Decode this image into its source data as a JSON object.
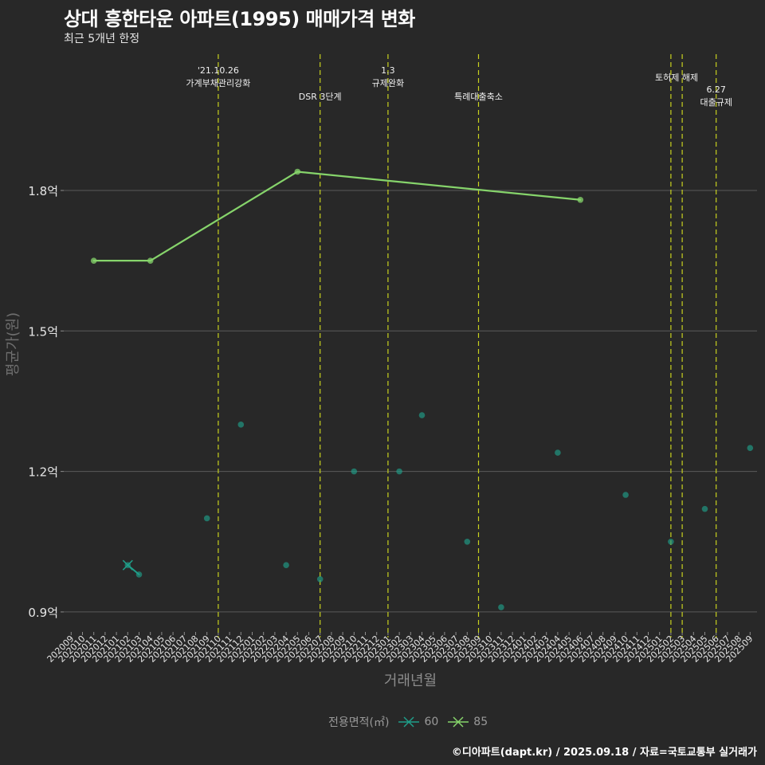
{
  "title": "상대 흥한타운 아파트(1995) 매매가격 변화",
  "subtitle": "최근 5개년 한정",
  "caption": "©디아파트(dapt.kr) / 2025.09.18 / 자료=국토교통부 실거래가",
  "colors": {
    "background": "#282828",
    "grid": "#5a5a5a",
    "series_60": "#1f9e89",
    "series_85": "#86d46b",
    "vline": "#c8d21e",
    "axis_text": "#e6e6e6",
    "axis_title": "#8c8c8c"
  },
  "legend": {
    "title": "전용면적(㎡)",
    "items": [
      {
        "label": "60",
        "color": "#1f9e89"
      },
      {
        "label": "85",
        "color": "#86d46b"
      }
    ]
  },
  "chart_data": {
    "type": "line",
    "title": "상대 흥한타운 아파트(1995) 매매가격 변화",
    "subtitle": "최근 5개년 한정",
    "xlabel": "거래년월",
    "ylabel": "평균가(원)",
    "ylim": [
      0.87,
      1.93
    ],
    "yticks": [
      0.9,
      1.2,
      1.5,
      1.8
    ],
    "ytick_labels": [
      "0.9억",
      "1.2억",
      "1.5억",
      "1.8억"
    ],
    "grid": true,
    "legend_position": "bottom",
    "categories": [
      "202009",
      "202010",
      "202011",
      "202012",
      "202101",
      "202102",
      "202103",
      "202104",
      "202105",
      "202106",
      "202107",
      "202108",
      "202109",
      "202110",
      "202111",
      "202112",
      "202201",
      "202202",
      "202203",
      "202204",
      "202205",
      "202206",
      "202207",
      "202208",
      "202209",
      "202210",
      "202211",
      "202212",
      "202301",
      "202302",
      "202303",
      "202304",
      "202305",
      "202306",
      "202307",
      "202308",
      "202309",
      "202310",
      "202311",
      "202312",
      "202401",
      "202402",
      "202403",
      "202404",
      "202405",
      "202406",
      "202407",
      "202408",
      "202409",
      "202410",
      "202411",
      "202412",
      "202501",
      "202502",
      "202503",
      "202504",
      "202505",
      "202506",
      "202507",
      "202508",
      "202509"
    ],
    "series": [
      {
        "name": "60",
        "unit": "억",
        "points": [
          {
            "x": "202102",
            "y": 1.0
          },
          {
            "x": "202103",
            "y": 0.98
          },
          {
            "x": "202109",
            "y": 1.1
          },
          {
            "x": "202112",
            "y": 1.3
          },
          {
            "x": "202204",
            "y": 1.0
          },
          {
            "x": "202207",
            "y": 0.97
          },
          {
            "x": "202210",
            "y": 1.2
          },
          {
            "x": "202302",
            "y": 1.2
          },
          {
            "x": "202304",
            "y": 1.32
          },
          {
            "x": "202308",
            "y": 1.05
          },
          {
            "x": "202311",
            "y": 0.91
          },
          {
            "x": "202404",
            "y": 1.24
          },
          {
            "x": "202410",
            "y": 1.15
          },
          {
            "x": "202502",
            "y": 1.05
          },
          {
            "x": "202505",
            "y": 1.12
          },
          {
            "x": "202509",
            "y": 1.25
          }
        ]
      },
      {
        "name": "85",
        "unit": "억",
        "points": [
          {
            "x": "202011",
            "y": 1.65
          },
          {
            "x": "202104",
            "y": 1.65
          },
          {
            "x": "202205",
            "y": 1.84
          },
          {
            "x": "202406",
            "y": 1.78
          }
        ]
      }
    ],
    "annotations": [
      {
        "x": "202110",
        "lines": [
          "'21.10.26",
          "가계부채관리강화"
        ],
        "label_y": 92
      },
      {
        "x": "202207",
        "lines": [
          "DSR 3단계"
        ],
        "label_y": 125
      },
      {
        "x": "202301",
        "lines": [
          "1.3",
          "규제완화"
        ],
        "label_y": 92
      },
      {
        "x": "202309",
        "lines": [
          "특례대출축소"
        ],
        "label_y": 125
      },
      {
        "x": "202502",
        "lines": [],
        "label_y": 0
      },
      {
        "x": "202503",
        "lines": [
          "토허제 해제"
        ],
        "label_y": 101,
        "label_x_offset": -7
      },
      {
        "x": "202506",
        "lines": [
          "6.27",
          "대출규제"
        ],
        "label_y": 116
      }
    ]
  }
}
